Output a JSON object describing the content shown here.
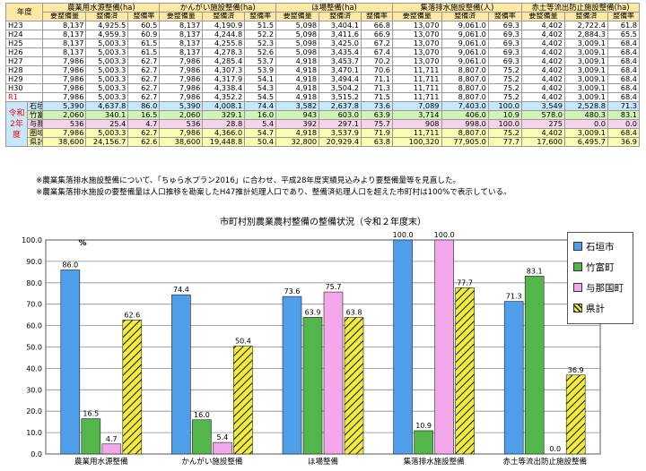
{
  "table": {
    "year_header": "年度",
    "groups": [
      "農業用水源整備(ha)",
      "かんがい施設整備(ha)",
      "ほ場整備(ha)",
      "集落排水施設整備(人)",
      "赤土等流出防止施設整備(ha)"
    ],
    "subheaders": [
      "要整備量",
      "整備済",
      "整備率"
    ],
    "r2_label": "令和2年度",
    "rows": [
      {
        "year": "H23",
        "v": [
          "8,137",
          "4,925.5",
          "60.5",
          "8,137",
          "4,190.9",
          "51.5",
          "5,098",
          "3,404.1",
          "66.8",
          "13,070",
          "9,061.0",
          "69.3",
          "4,402",
          "2,722.4",
          "61.8"
        ]
      },
      {
        "year": "H24",
        "v": [
          "8,137",
          "4,959.3",
          "60.9",
          "8,137",
          "4,244.8",
          "52.2",
          "5,098",
          "3,411.6",
          "66.9",
          "13,070",
          "9,061.0",
          "69.3",
          "4,402",
          "2,884.3",
          "65.5"
        ]
      },
      {
        "year": "H25",
        "v": [
          "8,137",
          "5,003.3",
          "61.5",
          "8,137",
          "4,255.8",
          "52.3",
          "5,098",
          "3,425.0",
          "67.2",
          "13,070",
          "9,061.0",
          "69.3",
          "4,402",
          "3,009.1",
          "68.4"
        ]
      },
      {
        "year": "H26",
        "v": [
          "8,137",
          "5,003.3",
          "61.5",
          "8,137",
          "4,278.3",
          "52.6",
          "5,098",
          "3,435.4",
          "67.4",
          "13,070",
          "9,061.0",
          "69.3",
          "4,402",
          "3,009.1",
          "68.4"
        ]
      },
      {
        "year": "H27",
        "v": [
          "7,986",
          "5,003.3",
          "62.7",
          "7,986",
          "4,285.4",
          "53.7",
          "4,918",
          "3,453.7",
          "70.2",
          "13,070",
          "9,061.0",
          "69.3",
          "4,402",
          "3,009.1",
          "68.4"
        ]
      },
      {
        "year": "H28",
        "v": [
          "7,986",
          "5,003.3",
          "62.7",
          "7,986",
          "4,307.3",
          "53.9",
          "4,918",
          "3,470.1",
          "70.6",
          "11,711",
          "8,807.0",
          "75.2",
          "4,402",
          "3,009.1",
          "68.4"
        ]
      },
      {
        "year": "H29",
        "v": [
          "7,986",
          "5,003.3",
          "62.7",
          "7,986",
          "4,317.9",
          "54.1",
          "4,918",
          "3,494.4",
          "71.1",
          "11,711",
          "8,807.0",
          "75.2",
          "4,402",
          "3,009.1",
          "68.4"
        ]
      },
      {
        "year": "H30",
        "v": [
          "7,986",
          "5,003.3",
          "62.7",
          "7,986",
          "4,338.4",
          "54.3",
          "4,918",
          "3,504.2",
          "71.3",
          "11,711",
          "8,807.0",
          "75.2",
          "4,402",
          "3,009.1",
          "68.4"
        ]
      },
      {
        "year": "R1",
        "v": [
          "7,986",
          "5,003.3",
          "62.7",
          "7,986",
          "4,352.2",
          "54.5",
          "4,918",
          "3,515.2",
          "71.5",
          "11,711",
          "8,807.0",
          "75.2",
          "4,402",
          "3,009.1",
          "68.4"
        ]
      }
    ],
    "municipal_rows": [
      {
        "name": "石垣市",
        "v": [
          "5,390",
          "4,637.8",
          "86.0",
          "5,390",
          "4,008.1",
          "74.4",
          "3,582",
          "2,637.8",
          "73.6",
          "7,089",
          "7,403.0",
          "100.0",
          "3,549",
          "2,528.8",
          "71.3"
        ]
      },
      {
        "name": "竹富町",
        "v": [
          "2,060",
          "340.1",
          "16.5",
          "2,060",
          "329.1",
          "16.0",
          "943",
          "603.0",
          "63.9",
          "3,714",
          "406.0",
          "10.9",
          "578.0",
          "480.3",
          "83.1"
        ]
      },
      {
        "name": "与那国町",
        "v": [
          "536",
          "25.4",
          "4.7",
          "536",
          "28.8",
          "5.4",
          "392",
          "297.1",
          "75.7",
          "908",
          "998.0",
          "100.0",
          "275",
          "0.0",
          "0.0"
        ]
      },
      {
        "name": "圏域計",
        "v": [
          "7,986",
          "5,003.3",
          "62.7",
          "7,986",
          "4,366.0",
          "54.7",
          "4,918",
          "3,537.9",
          "71.9",
          "11,711",
          "8,807.0",
          "75.2",
          "4,402",
          "3,009.1",
          "68.4"
        ]
      },
      {
        "name": "県計",
        "v": [
          "38,600",
          "24,156.7",
          "62.6",
          "38,600",
          "19,448.8",
          "50.4",
          "32,800",
          "20,929.4",
          "63.8",
          "100,320",
          "77,905.0",
          "77.7",
          "17,600",
          "6,495.7",
          "36.9"
        ]
      }
    ]
  },
  "notes": [
    "※農業集落排水施設整備について、「ちゅら水プラン2016」に合わせ、平成28年度実績見込みより要整備量等を見直した。",
    "※農業集落排水施設の要整備量は人口推移を勘案したH47推計処理人口であり、整備済処理人口を超えた市町村は100%で表示している。"
  ],
  "chart_data": {
    "type": "bar",
    "title": "市町村別農業農村整備の整備状況（令和２年度末）",
    "ylabel": "%",
    "ylim": [
      0,
      100
    ],
    "yticks": [
      "0.0",
      "10.0",
      "20.0",
      "30.0",
      "40.0",
      "50.0",
      "60.0",
      "70.0",
      "80.0",
      "90.0",
      "100.0"
    ],
    "categories": [
      "農業用水源整備",
      "かんがい施設整備",
      "ほ場整備",
      "集落排水施設整備",
      "赤土等流出防止施設整備"
    ],
    "series": [
      {
        "name": "石垣市",
        "color": "#4f9eea",
        "pattern": "solid",
        "values": [
          86.0,
          74.4,
          73.6,
          100.0,
          71.3
        ]
      },
      {
        "name": "竹富町",
        "color": "#53b64a",
        "pattern": "solid",
        "values": [
          16.5,
          16.0,
          63.9,
          10.9,
          83.1
        ]
      },
      {
        "name": "与那国町",
        "color": "#f3a6ea",
        "pattern": "solid",
        "values": [
          4.7,
          5.4,
          75.7,
          100.0,
          0.0
        ]
      },
      {
        "name": "県計",
        "color": "#f2ec3a",
        "pattern": "hatch",
        "values": [
          62.6,
          50.4,
          63.8,
          77.7,
          36.9
        ]
      }
    ],
    "grid": true,
    "legend": "right"
  }
}
